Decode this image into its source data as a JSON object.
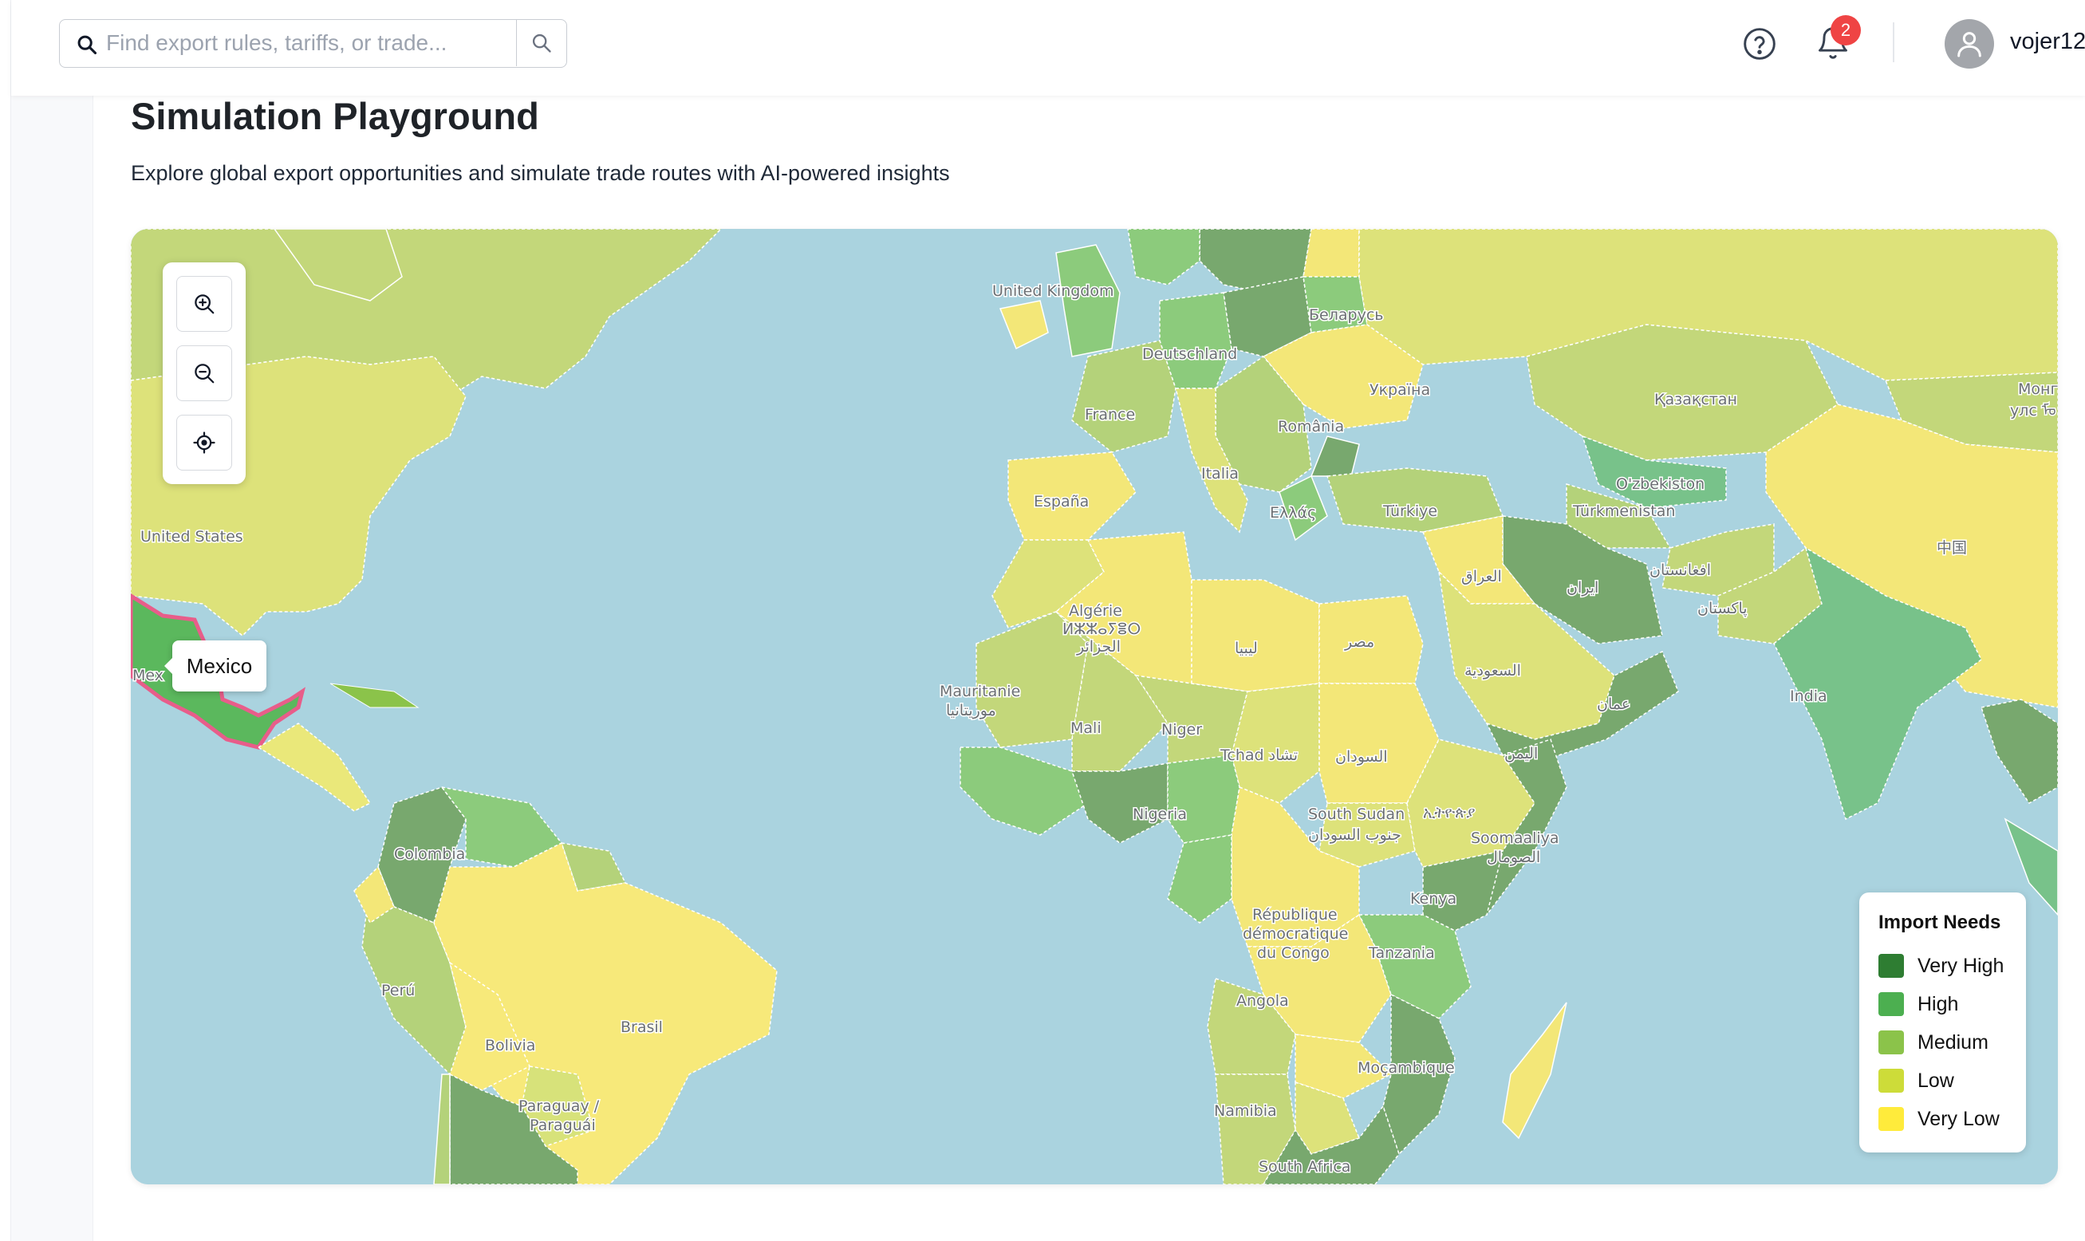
{
  "search": {
    "placeholder": "Find export rules, tariffs, or trade..."
  },
  "header": {
    "notification_count": "2",
    "username": "vojer12"
  },
  "page": {
    "title": "Simulation Playground",
    "subtitle": "Explore global export opportunities and simulate trade routes with AI-powered insights"
  },
  "map": {
    "tooltip": "Mexico",
    "selected_country": "Mexico",
    "controls": [
      "zoom-in-icon",
      "zoom-out-icon",
      "locate-icon"
    ],
    "labels": {
      "united_kingdom": "United Kingdom",
      "belarus": "Беларусь",
      "deutschland": "Deutschland",
      "ukraine": "Україна",
      "kazakhstan": "Қазақстан",
      "mongolia_1": "Монг",
      "mongolia_2": "улс ᠮᠣ",
      "france": "France",
      "romania": "România",
      "italia": "Italia",
      "espana": "España",
      "ellas": "Ελλάς",
      "turkiye": "Türkiye",
      "uzbekistan": "O'zbekiston",
      "turkmenistan": "Türkmenistan",
      "united_states": "United States",
      "iraq": "العراق",
      "iran": "ایران",
      "afghanistan": "افغانستان",
      "pakistan": "پاکستان",
      "china": "中国",
      "algeria_1": "Algérie",
      "algeria_2": "ⵍⵣⵣⴰⵢⴻⵔ",
      "algeria_3": "الجزائر",
      "libya": "ليبيا",
      "egypt": "مصر",
      "saudi": "السعودية",
      "oman": "عمان",
      "india": "India",
      "mauritanie_1": "Mauritanie",
      "mauritanie_2": "موريتانيا",
      "mali": "Mali",
      "niger": "Niger",
      "tchad": "Tchad تشاد",
      "sudan": "السودان",
      "yemen": "اليمن",
      "mexico_partial": "Mex",
      "colombia": "Colombia",
      "nigeria": "Nigeria",
      "south_sudan_1": "South Sudan",
      "south_sudan_2": "جنوب السودان",
      "ethiopia": "ኢትዮጵያ",
      "somalia_1": "Soomaaliya",
      "somalia_2": "الصومال",
      "kenya": "Kenya",
      "drc_1": "République",
      "drc_2": "démocratique",
      "drc_3": "du Congo",
      "tanzania": "Tanzania",
      "peru": "Perú",
      "brasil": "Brasil",
      "bolivia": "Bolivia",
      "angola": "Angola",
      "mozambique": "Moçambique",
      "namibia": "Namibia",
      "paraguay_1": "Paraguay /",
      "paraguay_2": "Paraguái",
      "south_africa": "South Africa"
    }
  },
  "legend": {
    "title": "Import Needs",
    "items": [
      {
        "label": "Very High",
        "color": "#2e7d32"
      },
      {
        "label": "High",
        "color": "#4caf50"
      },
      {
        "label": "Medium",
        "color": "#8bc34a"
      },
      {
        "label": "Low",
        "color": "#cddc39"
      },
      {
        "label": "Very Low",
        "color": "#ffeb3b"
      }
    ]
  },
  "colors": {
    "ocean": "#aad3df",
    "selected_outline": "#e85d8a",
    "badge": "#ef4444"
  }
}
